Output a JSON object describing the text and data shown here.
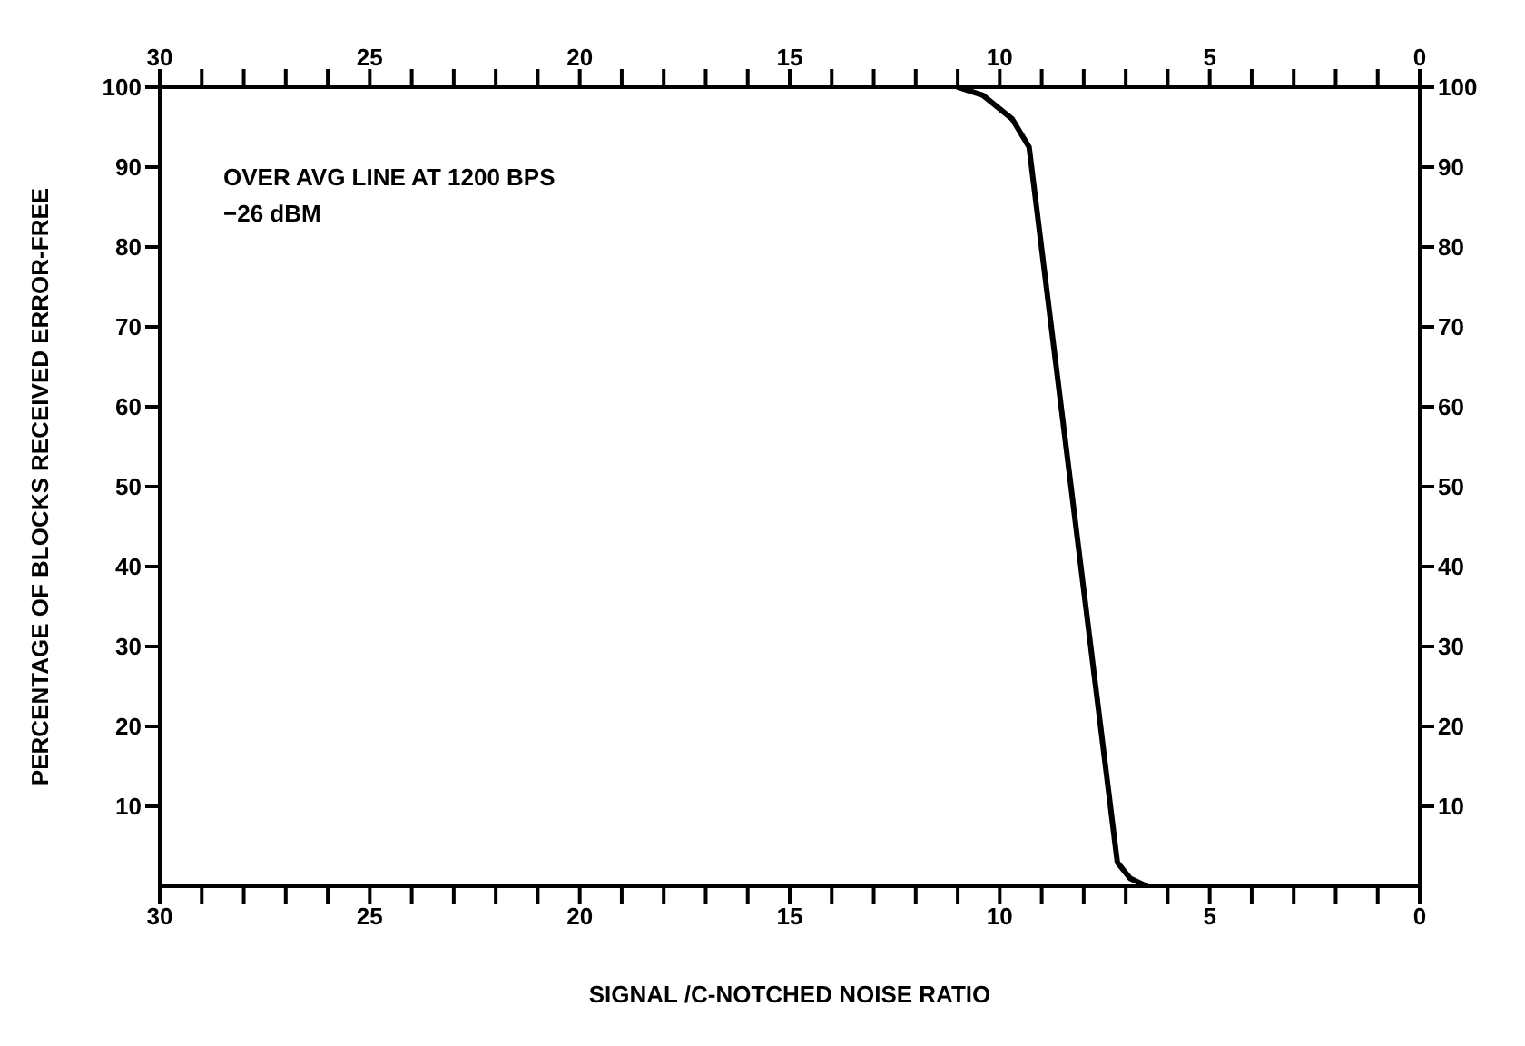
{
  "chart_data": {
    "type": "line",
    "xlabel": "SIGNAL /C-NOTCHED NOISE RATIO",
    "ylabel": "PERCENTAGE OF BLOCKS RECEIVED ERROR-FREE",
    "annotations": [
      "OVER AVG LINE AT 1200 BPS\n−26 dBM"
    ],
    "x": [
      11,
      10.4,
      9.7,
      9.3,
      7.2,
      6.9,
      6.5
    ],
    "series": [
      {
        "color": "#000000",
        "values": [
          100,
          99,
          96,
          92.5,
          3,
          1,
          0
        ]
      }
    ],
    "xlim": [
      30,
      0
    ],
    "xticks": [
      {
        "value": 30,
        "label": "30"
      },
      {
        "value": 29,
        "label": null
      },
      {
        "value": 28,
        "label": null
      },
      {
        "value": 27,
        "label": null
      },
      {
        "value": 26,
        "label": null
      },
      {
        "value": 25,
        "label": "25"
      },
      {
        "value": 24,
        "label": null
      },
      {
        "value": 23,
        "label": null
      },
      {
        "value": 22,
        "label": null
      },
      {
        "value": 21,
        "label": null
      },
      {
        "value": 20,
        "label": "20"
      },
      {
        "value": 19,
        "label": null
      },
      {
        "value": 18,
        "label": null
      },
      {
        "value": 17,
        "label": null
      },
      {
        "value": 16,
        "label": null
      },
      {
        "value": 15,
        "label": "15"
      },
      {
        "value": 14,
        "label": null
      },
      {
        "value": 13,
        "label": null
      },
      {
        "value": 12,
        "label": null
      },
      {
        "value": 11,
        "label": null
      },
      {
        "value": 10,
        "label": "10"
      },
      {
        "value": 9,
        "label": null
      },
      {
        "value": 8,
        "label": null
      },
      {
        "value": 7,
        "label": null
      },
      {
        "value": 6,
        "label": null
      },
      {
        "value": 5,
        "label": "5"
      },
      {
        "value": 4,
        "label": null
      },
      {
        "value": 3,
        "label": null
      },
      {
        "value": 2,
        "label": null
      },
      {
        "value": 1,
        "label": null
      },
      {
        "value": 0,
        "label": "0"
      }
    ],
    "x2lim": [
      30,
      0
    ],
    "x2ticks": [
      {
        "value": 30,
        "label": "30"
      },
      {
        "value": 29,
        "label": null
      },
      {
        "value": 28,
        "label": null
      },
      {
        "value": 27,
        "label": null
      },
      {
        "value": 26,
        "label": null
      },
      {
        "value": 25,
        "label": "25"
      },
      {
        "value": 24,
        "label": null
      },
      {
        "value": 23,
        "label": null
      },
      {
        "value": 22,
        "label": null
      },
      {
        "value": 21,
        "label": null
      },
      {
        "value": 20,
        "label": "20"
      },
      {
        "value": 19,
        "label": null
      },
      {
        "value": 18,
        "label": null
      },
      {
        "value": 17,
        "label": null
      },
      {
        "value": 16,
        "label": null
      },
      {
        "value": 15,
        "label": "15"
      },
      {
        "value": 14,
        "label": null
      },
      {
        "value": 13,
        "label": null
      },
      {
        "value": 12,
        "label": null
      },
      {
        "value": 11,
        "label": null
      },
      {
        "value": 10,
        "label": "10"
      },
      {
        "value": 9,
        "label": null
      },
      {
        "value": 8,
        "label": null
      },
      {
        "value": 7,
        "label": null
      },
      {
        "value": 6,
        "label": null
      },
      {
        "value": 5,
        "label": "5"
      },
      {
        "value": 4,
        "label": null
      },
      {
        "value": 3,
        "label": null
      },
      {
        "value": 2,
        "label": null
      },
      {
        "value": 1,
        "label": null
      },
      {
        "value": 0,
        "label": "0"
      }
    ],
    "ylim": [
      0,
      100
    ],
    "yticks": [
      10,
      20,
      30,
      40,
      50,
      60,
      70,
      80,
      90,
      100
    ],
    "y2lim": [
      0,
      100
    ],
    "y2ticks": [
      10,
      20,
      30,
      40,
      50,
      60,
      70,
      80,
      90,
      100
    ],
    "grid": false,
    "legend": false,
    "marker": "none",
    "line_style": "solid"
  }
}
